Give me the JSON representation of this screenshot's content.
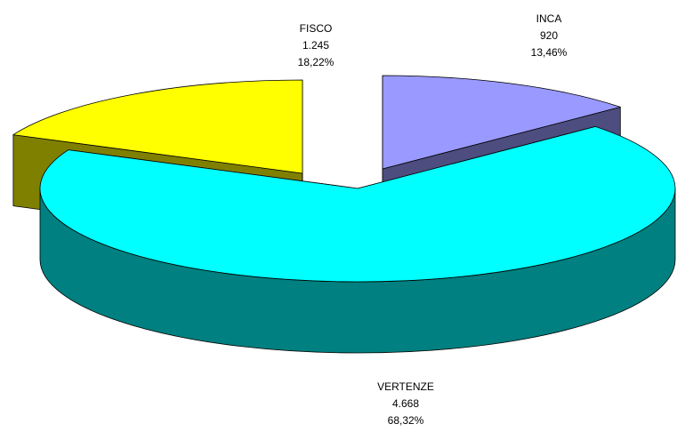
{
  "chart_data": {
    "type": "pie3d",
    "categories": [
      "INCA",
      "VERTENZE",
      "FISCO"
    ],
    "values": [
      920,
      4668,
      1245
    ],
    "value_labels": [
      "920",
      "4.668",
      "1.245"
    ],
    "percents": [
      13.46,
      68.32,
      18.22
    ],
    "percent_labels": [
      "13,46%",
      "68,32%",
      "18,22%"
    ],
    "colors": [
      "#9999ff",
      "#00ffff",
      "#ffff00"
    ]
  }
}
